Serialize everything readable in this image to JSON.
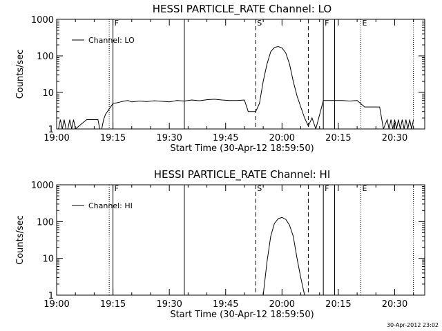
{
  "chart_data": [
    {
      "type": "line",
      "title": "HESSI PARTICLE_RATE Channel: LO",
      "xlabel": "Start Time (30-Apr-12 18:59:50)",
      "ylabel": "Counts/sec",
      "y_scale": "log",
      "ylim": [
        1,
        1000
      ],
      "xlim": [
        "19:00",
        "20:38"
      ],
      "x_ticks": [
        "19:00",
        "19:15",
        "19:30",
        "19:45",
        "20:00",
        "20:15",
        "20:30"
      ],
      "y_ticks": [
        "1",
        "10",
        "100",
        "1000"
      ],
      "legend": {
        "label": "Channel: LO",
        "position": "top-left"
      },
      "event_lines": [
        {
          "x": "19:14",
          "label": "",
          "style": "dotted"
        },
        {
          "x": "19:15",
          "label": "F",
          "style": "solid"
        },
        {
          "x": "19:34",
          "label": "",
          "style": "solid"
        },
        {
          "x": "19:53",
          "label": "S",
          "style": "dashed"
        },
        {
          "x": "20:07",
          "label": "",
          "style": "dashed"
        },
        {
          "x": "20:11",
          "label": "F",
          "style": "solid"
        },
        {
          "x": "20:14",
          "label": "",
          "style": "solid"
        },
        {
          "x": "20:21",
          "label": "E",
          "style": "dotted"
        },
        {
          "x": "20:35",
          "label": "",
          "style": "dotted"
        }
      ],
      "series": [
        {
          "x": [
            "19:00",
            "19:00.5",
            "19:01",
            "19:01.5",
            "19:02",
            "19:02.5",
            "19:03",
            "19:03.5",
            "19:04",
            "19:04.5",
            "19:05",
            "19:08",
            "19:11",
            "19:11.5",
            "19:12",
            "19:12.5",
            "19:13",
            "19:14",
            "19:15",
            "19:16",
            "19:17",
            "19:18",
            "19:19",
            "19:20",
            "19:22",
            "19:24",
            "19:26",
            "19:28",
            "19:30",
            "19:32",
            "19:34",
            "19:36",
            "19:38",
            "19:40",
            "19:42",
            "19:44",
            "19:46",
            "19:48",
            "19:50",
            "19:51",
            "19:53",
            "19:54",
            "19:55",
            "19:56",
            "19:57",
            "19:58",
            "19:59",
            "20:00",
            "20:01",
            "20:02",
            "20:03",
            "20:04",
            "20:05",
            "20:06",
            "20:07",
            "20:08",
            "20:09",
            "20:11",
            "20:12",
            "20:14",
            "20:16",
            "20:18",
            "20:20",
            "20:22",
            "20:24",
            "20:26",
            "20:27",
            "20:28",
            "20:28.5",
            "20:29",
            "20:29.5",
            "20:30",
            "20:30.5",
            "20:31",
            "20:31.5",
            "20:32",
            "20:32.5",
            "20:33",
            "20:33.5",
            "20:34",
            "20:34.5",
            "20:35"
          ],
          "y": [
            1,
            1,
            1.8,
            1,
            1.8,
            1,
            1,
            1.8,
            1,
            1.8,
            1,
            1.8,
            1.8,
            1,
            1,
            1.8,
            2.5,
            3.5,
            5,
            5.2,
            5.5,
            5.8,
            6,
            5.5,
            5.8,
            5.6,
            5.9,
            5.7,
            5.5,
            6,
            5.8,
            6.2,
            5.9,
            6.3,
            6.5,
            6.2,
            6,
            6,
            6.2,
            3,
            3,
            5,
            20,
            60,
            130,
            170,
            180,
            165,
            120,
            60,
            20,
            8,
            4,
            2,
            1.2,
            2,
            1,
            6,
            6,
            6,
            6,
            5.8,
            6,
            4,
            4,
            4,
            1,
            1.8,
            1,
            1.8,
            1,
            1.8,
            1,
            1.8,
            1,
            1.8,
            1,
            1.8,
            1,
            1.8,
            1,
            1.8
          ]
        }
      ]
    },
    {
      "type": "line",
      "title": "HESSI PARTICLE_RATE Channel: HI",
      "xlabel": "Start Time (30-Apr-12 18:59:50)",
      "ylabel": "Counts/sec",
      "y_scale": "log",
      "ylim": [
        1,
        1000
      ],
      "xlim": [
        "19:00",
        "20:38"
      ],
      "x_ticks": [
        "19:00",
        "19:15",
        "19:30",
        "19:45",
        "20:00",
        "20:15",
        "20:30"
      ],
      "y_ticks": [
        "1",
        "10",
        "100",
        "1000"
      ],
      "legend": {
        "label": "Channel: HI",
        "position": "top-left"
      },
      "event_lines": [
        {
          "x": "19:14",
          "label": "",
          "style": "dotted"
        },
        {
          "x": "19:15",
          "label": "F",
          "style": "solid"
        },
        {
          "x": "19:34",
          "label": "",
          "style": "solid"
        },
        {
          "x": "19:53",
          "label": "S",
          "style": "dashed"
        },
        {
          "x": "20:07",
          "label": "",
          "style": "dashed"
        },
        {
          "x": "20:11",
          "label": "F",
          "style": "solid"
        },
        {
          "x": "20:14",
          "label": "",
          "style": "solid"
        },
        {
          "x": "20:21",
          "label": "E",
          "style": "dotted"
        },
        {
          "x": "20:35",
          "label": "",
          "style": "dotted"
        }
      ],
      "series": [
        {
          "x": [
            "19:55",
            "19:56",
            "19:57",
            "19:58",
            "19:59",
            "20:00",
            "20:01",
            "20:02",
            "20:03",
            "20:04",
            "20:05",
            "20:06"
          ],
          "y": [
            1,
            8,
            40,
            90,
            120,
            130,
            115,
            80,
            40,
            10,
            3,
            1
          ]
        }
      ]
    }
  ],
  "footer": {
    "timestamp": "30-Apr-2012 23:02"
  }
}
